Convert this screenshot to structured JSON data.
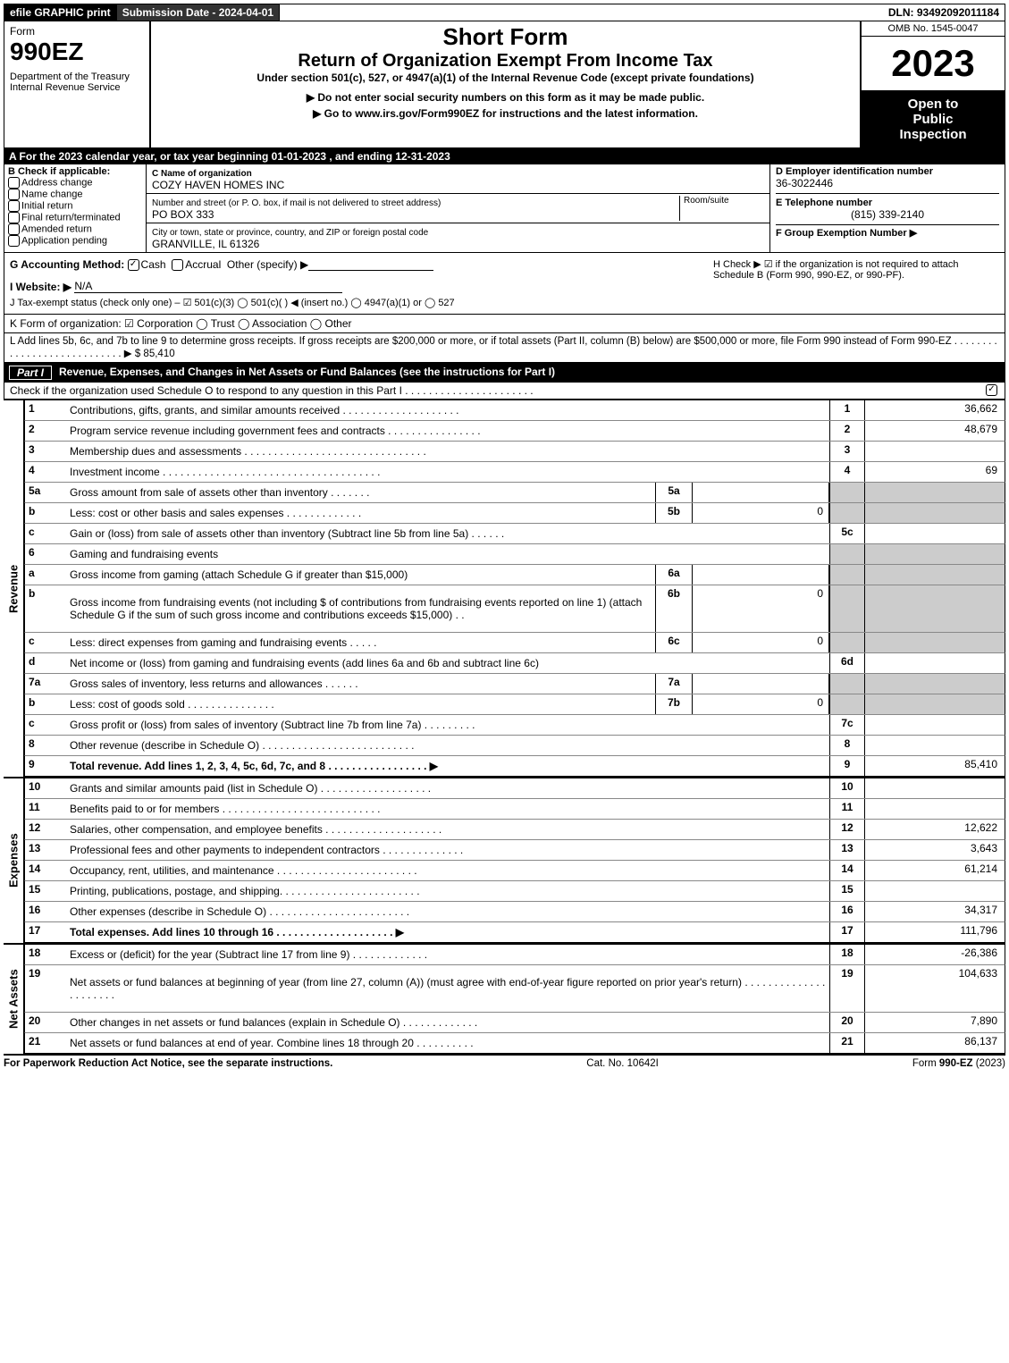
{
  "top": {
    "efile": "efile GRAPHIC print",
    "submission": "Submission Date - 2024-04-01",
    "dln": "DLN: 93492092011184"
  },
  "header": {
    "form_label": "Form",
    "form_no": "990EZ",
    "dept1": "Department of the Treasury",
    "dept2": "Internal Revenue Service",
    "short_form": "Short Form",
    "title": "Return of Organization Exempt From Income Tax",
    "subtitle": "Under section 501(c), 527, or 4947(a)(1) of the Internal Revenue Code (except private foundations)",
    "note1": "▶ Do not enter social security numbers on this form as it may be made public.",
    "note2": "▶ Go to www.irs.gov/Form990EZ for instructions and the latest information.",
    "omb": "OMB No. 1545-0047",
    "year": "2023",
    "inspection1": "Open to",
    "inspection2": "Public",
    "inspection3": "Inspection"
  },
  "sectionA": "A  For the 2023 calendar year, or tax year beginning 01-01-2023 , and ending 12-31-2023",
  "B": {
    "label": "B  Check if applicable:",
    "opts": [
      "Address change",
      "Name change",
      "Initial return",
      "Final return/terminated",
      "Amended return",
      "Application pending"
    ]
  },
  "C": {
    "name_label": "C Name of organization",
    "name": "COZY HAVEN HOMES INC",
    "street_label": "Number and street (or P. O. box, if mail is not delivered to street address)",
    "room_label": "Room/suite",
    "street": "PO BOX 333",
    "city_label": "City or town, state or province, country, and ZIP or foreign postal code",
    "city": "GRANVILLE, IL  61326"
  },
  "D": {
    "ein_label": "D Employer identification number",
    "ein": "36-3022446",
    "phone_label": "E Telephone number",
    "phone": "(815) 339-2140",
    "group_label": "F Group Exemption Number  ▶"
  },
  "G": {
    "label": "G Accounting Method:",
    "cash": "Cash",
    "accrual": "Accrual",
    "other": "Other (specify) ▶"
  },
  "H": "H   Check ▶ ☑ if the organization is not required to attach Schedule B (Form 990, 990-EZ, or 990-PF).",
  "I": {
    "label": "I Website: ▶",
    "val": "N/A"
  },
  "J": "J Tax-exempt status (check only one) – ☑ 501(c)(3)  ◯ 501(c)(  ) ◀ (insert no.)  ◯ 4947(a)(1) or  ◯ 527",
  "K": "K Form of organization:  ☑ Corporation   ◯ Trust   ◯ Association   ◯ Other",
  "L": "L Add lines 5b, 6c, and 7b to line 9 to determine gross receipts. If gross receipts are $200,000 or more, or if total assets (Part II, column (B) below) are $500,000 or more, file Form 990 instead of Form 990-EZ  .  .  .  .  .  .  .  .  .  .  .  .  .  .  .  .  .  .  .  .  .  .  .  .  .  .  .  . ▶ $ 85,410",
  "part1": {
    "title": "Revenue, Expenses, and Changes in Net Assets or Fund Balances (see the instructions for Part I)",
    "check": "Check if the organization used Schedule O to respond to any question in this Part I  .  .  .  .  .  .  .  .  .  .  .  .  .  .  .  .  .  .  .  .  .  ."
  },
  "sides": {
    "rev": "Revenue",
    "exp": "Expenses",
    "na": "Net Assets"
  },
  "lines": [
    {
      "n": "1",
      "d": "Contributions, gifts, grants, and similar amounts received  .  .  .  .  .  .  .  .  .  .  .  .  .  .  .  .  .  .  .  .",
      "rn": "1",
      "rv": "36,662"
    },
    {
      "n": "2",
      "d": "Program service revenue including government fees and contracts  .  .  .  .  .  .  .  .  .  .  .  .  .  .  .  .",
      "rn": "2",
      "rv": "48,679"
    },
    {
      "n": "3",
      "d": "Membership dues and assessments  .  .  .  .  .  .  .  .  .  .  .  .  .  .  .  .  .  .  .  .  .  .  .  .  .  .  .  .  .  .  .",
      "rn": "3",
      "rv": ""
    },
    {
      "n": "4",
      "d": "Investment income  .  .  .  .  .  .  .  .  .  .  .  .  .  .  .  .  .  .  .  .  .  .  .  .  .  .  .  .  .  .  .  .  .  .  .  .  .",
      "rn": "4",
      "rv": "69"
    },
    {
      "n": "5a",
      "d": "Gross amount from sale of assets other than inventory  .  .  .  .  .  .  .",
      "mn": "5a",
      "mv": "",
      "shaded": true
    },
    {
      "n": "b",
      "d": "Less: cost or other basis and sales expenses  .  .  .  .  .  .  .  .  .  .  .  .  .",
      "mn": "5b",
      "mv": "0",
      "shaded": true
    },
    {
      "n": "c",
      "d": "Gain or (loss) from sale of assets other than inventory (Subtract line 5b from line 5a)  .  .  .  .  .  .",
      "rn": "5c",
      "rv": ""
    },
    {
      "n": "6",
      "d": "Gaming and fundraising events",
      "shaded": true
    },
    {
      "n": "a",
      "d": "Gross income from gaming (attach Schedule G if greater than $15,000)",
      "mn": "6a",
      "mv": "",
      "shaded": true
    },
    {
      "n": "b",
      "d": "Gross income from fundraising events (not including $                           of contributions from fundraising events reported on line 1) (attach Schedule G if the sum of such gross income and contributions exceeds $15,000)    .  .",
      "mn": "6b",
      "mv": "0",
      "shaded": true,
      "tall": true
    },
    {
      "n": "c",
      "d": "Less: direct expenses from gaming and fundraising events  .  .  .  .  .",
      "mn": "6c",
      "mv": "0",
      "shaded": true
    },
    {
      "n": "d",
      "d": "Net income or (loss) from gaming and fundraising events (add lines 6a and 6b and subtract line 6c)",
      "rn": "6d",
      "rv": ""
    },
    {
      "n": "7a",
      "d": "Gross sales of inventory, less returns and allowances  .  .  .  .  .  .",
      "mn": "7a",
      "mv": "",
      "shaded": true
    },
    {
      "n": "b",
      "d": "Less: cost of goods sold       .  .  .  .  .  .  .  .  .  .  .  .  .  .  .",
      "mn": "7b",
      "mv": "0",
      "shaded": true
    },
    {
      "n": "c",
      "d": "Gross profit or (loss) from sales of inventory (Subtract line 7b from line 7a)  .  .  .  .  .  .  .  .  .",
      "rn": "7c",
      "rv": ""
    },
    {
      "n": "8",
      "d": "Other revenue (describe in Schedule O)  .  .  .  .  .  .  .  .  .  .  .  .  .  .  .  .  .  .  .  .  .  .  .  .  .  .",
      "rn": "8",
      "rv": ""
    },
    {
      "n": "9",
      "d": "Total revenue. Add lines 1, 2, 3, 4, 5c, 6d, 7c, and 8   .  .  .  .  .  .  .  .  .  .  .  .  .  .  .  .  .  ▶",
      "rn": "9",
      "rv": "85,410",
      "bold": true
    }
  ],
  "exp_lines": [
    {
      "n": "10",
      "d": "Grants and similar amounts paid (list in Schedule O)  .  .  .  .  .  .  .  .  .  .  .  .  .  .  .  .  .  .  .",
      "rn": "10",
      "rv": ""
    },
    {
      "n": "11",
      "d": "Benefits paid to or for members     .  .  .  .  .  .  .  .  .  .  .  .  .  .  .  .  .  .  .  .  .  .  .  .  .  .  .",
      "rn": "11",
      "rv": ""
    },
    {
      "n": "12",
      "d": "Salaries, other compensation, and employee benefits .  .  .  .  .  .  .  .  .  .  .  .  .  .  .  .  .  .  .  .",
      "rn": "12",
      "rv": "12,622"
    },
    {
      "n": "13",
      "d": "Professional fees and other payments to independent contractors  .  .  .  .  .  .  .  .  .  .  .  .  .  .",
      "rn": "13",
      "rv": "3,643"
    },
    {
      "n": "14",
      "d": "Occupancy, rent, utilities, and maintenance .  .  .  .  .  .  .  .  .  .  .  .  .  .  .  .  .  .  .  .  .  .  .  .",
      "rn": "14",
      "rv": "61,214"
    },
    {
      "n": "15",
      "d": "Printing, publications, postage, and shipping.  .  .  .  .  .  .  .  .  .  .  .  .  .  .  .  .  .  .  .  .  .  .  .",
      "rn": "15",
      "rv": ""
    },
    {
      "n": "16",
      "d": "Other expenses (describe in Schedule O)    .  .  .  .  .  .  .  .  .  .  .  .  .  .  .  .  .  .  .  .  .  .  .  .",
      "rn": "16",
      "rv": "34,317"
    },
    {
      "n": "17",
      "d": "Total expenses. Add lines 10 through 16     .  .  .  .  .  .  .  .  .  .  .  .  .  .  .  .  .  .  .  .  ▶",
      "rn": "17",
      "rv": "111,796",
      "bold": true
    }
  ],
  "na_lines": [
    {
      "n": "18",
      "d": "Excess or (deficit) for the year (Subtract line 17 from line 9)       .  .  .  .  .  .  .  .  .  .  .  .  .",
      "rn": "18",
      "rv": "-26,386"
    },
    {
      "n": "19",
      "d": "Net assets or fund balances at beginning of year (from line 27, column (A)) (must agree with end-of-year figure reported on prior year's return) .  .  .  .  .  .  .  .  .  .  .  .  .  .  .  .  .  .  .  .  .  .",
      "rn": "19",
      "rv": "104,633",
      "tall": true
    },
    {
      "n": "20",
      "d": "Other changes in net assets or fund balances (explain in Schedule O) .  .  .  .  .  .  .  .  .  .  .  .  .",
      "rn": "20",
      "rv": "7,890"
    },
    {
      "n": "21",
      "d": "Net assets or fund balances at end of year. Combine lines 18 through 20 .  .  .  .  .  .  .  .  .  .",
      "rn": "21",
      "rv": "86,137"
    }
  ],
  "footer": {
    "l": "For Paperwork Reduction Act Notice, see the separate instructions.",
    "c": "Cat. No. 10642I",
    "r": "Form 990-EZ (2023)"
  }
}
